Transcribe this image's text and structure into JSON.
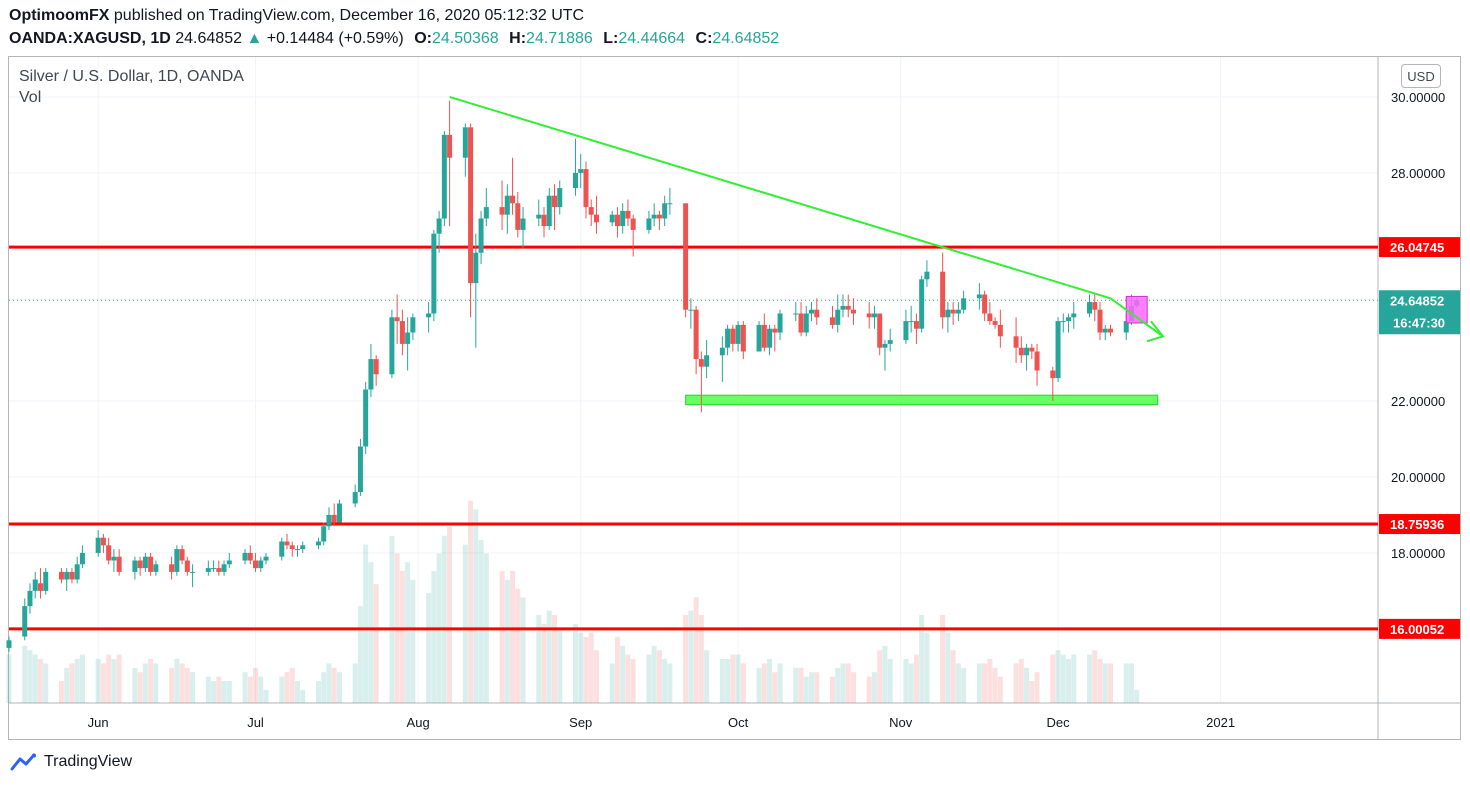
{
  "header": {
    "publisher": "OptimoomFX",
    "published_text": "published on TradingView.com, December 16, 2020 05:12:32 UTC",
    "symbol": "OANDA:XAGUSD, 1D",
    "last": "24.64852",
    "change": "+0.14484 (+0.59%)",
    "o_label": "O:",
    "o": "24.50368",
    "h_label": "H:",
    "h": "24.71886",
    "l_label": "L:",
    "l": "24.44664",
    "c_label": "C:",
    "c": "24.64852"
  },
  "legend": {
    "title": "Silver / U.S. Dollar, 1D, OANDA",
    "vol": "Vol"
  },
  "currency_button": "USD",
  "brand": "TradingView",
  "colors": {
    "up": "#26a69a",
    "down": "#ef5350",
    "level": "#ff0000",
    "trend": "#33ee33",
    "support_zone": "#66ff66",
    "box": "#ff66ff"
  },
  "chart_data": {
    "type": "candlestick",
    "y_ticks": [
      "16.00000",
      "18.00000",
      "20.00000",
      "22.00000",
      "28.00000",
      "30.00000"
    ],
    "x_ticks": [
      {
        "label": "Jun",
        "date": "2020-06-01"
      },
      {
        "label": "Jul",
        "date": "2020-07-01"
      },
      {
        "label": "Aug",
        "date": "2020-08-01"
      },
      {
        "label": "Sep",
        "date": "2020-09-01"
      },
      {
        "label": "Oct",
        "date": "2020-10-01"
      },
      {
        "label": "Nov",
        "date": "2020-11-01"
      },
      {
        "label": "Dec",
        "date": "2020-12-01"
      },
      {
        "label": "2021",
        "date": "2021-01-01"
      }
    ],
    "xlim": [
      "2020-05-15",
      "2021-01-31"
    ],
    "ylim": [
      14.05,
      31.05
    ],
    "horizontal_levels": [
      {
        "value": 26.04745,
        "label": "26.04745"
      },
      {
        "value": 18.75936,
        "label": "18.75936"
      },
      {
        "value": 16.00052,
        "label": "16.00052"
      }
    ],
    "last_price": {
      "value": 24.64852,
      "label": "24.64852",
      "countdown": "16:47:30"
    },
    "trendline": {
      "from": [
        "2020-08-07",
        30.0
      ],
      "to": [
        "2020-12-11",
        24.7
      ],
      "extend_to": [
        "2020-12-21",
        23.7
      ]
    },
    "support_zone": {
      "from": "2020-09-21",
      "to": "2020-12-20",
      "low": 21.9,
      "high": 22.15
    },
    "marker_box": {
      "from": "2020-12-14",
      "to": "2020-12-18",
      "low": 24.05,
      "high": 24.75
    },
    "candles": [
      [
        "2020-05-15",
        15.5,
        15.8,
        15.4,
        15.7,
        1.1
      ],
      [
        "2020-05-18",
        15.8,
        16.8,
        15.7,
        16.6,
        1.3
      ],
      [
        "2020-05-19",
        16.6,
        17.2,
        16.4,
        17.0,
        1.2
      ],
      [
        "2020-05-20",
        17.0,
        17.5,
        16.8,
        17.3,
        1.1
      ],
      [
        "2020-05-21",
        17.2,
        17.6,
        16.8,
        17.0,
        1.0
      ],
      [
        "2020-05-22",
        17.0,
        17.6,
        16.9,
        17.5,
        0.9
      ],
      [
        "2020-05-25",
        17.5,
        17.6,
        17.2,
        17.3,
        0.5
      ],
      [
        "2020-05-26",
        17.3,
        17.6,
        17.0,
        17.5,
        0.8
      ],
      [
        "2020-05-27",
        17.5,
        17.6,
        17.2,
        17.3,
        0.9
      ],
      [
        "2020-05-28",
        17.3,
        17.9,
        17.2,
        17.7,
        1.0
      ],
      [
        "2020-05-29",
        17.7,
        18.2,
        17.6,
        18.0,
        1.1
      ],
      [
        "2020-06-01",
        18.0,
        18.6,
        17.9,
        18.4,
        1.0
      ],
      [
        "2020-06-02",
        18.4,
        18.5,
        18.0,
        18.2,
        0.9
      ],
      [
        "2020-06-03",
        18.2,
        18.4,
        17.7,
        17.8,
        1.1
      ],
      [
        "2020-06-04",
        17.8,
        18.1,
        17.5,
        17.9,
        1.0
      ],
      [
        "2020-06-05",
        17.9,
        18.1,
        17.4,
        17.5,
        1.1
      ],
      [
        "2020-06-08",
        17.5,
        17.9,
        17.3,
        17.8,
        0.8
      ],
      [
        "2020-06-09",
        17.8,
        17.9,
        17.4,
        17.6,
        0.7
      ],
      [
        "2020-06-10",
        17.6,
        18.0,
        17.5,
        17.9,
        0.9
      ],
      [
        "2020-06-11",
        17.9,
        18.0,
        17.4,
        17.5,
        1.0
      ],
      [
        "2020-06-12",
        17.5,
        17.8,
        17.4,
        17.7,
        0.9
      ],
      [
        "2020-06-15",
        17.7,
        17.9,
        17.3,
        17.5,
        0.8
      ],
      [
        "2020-06-16",
        17.5,
        18.2,
        17.4,
        18.1,
        1.0
      ],
      [
        "2020-06-17",
        18.1,
        18.2,
        17.7,
        17.8,
        0.9
      ],
      [
        "2020-06-18",
        17.8,
        17.9,
        17.4,
        17.5,
        0.8
      ],
      [
        "2020-06-19",
        17.5,
        17.7,
        17.1,
        17.5,
        0.7
      ],
      [
        "2020-06-22",
        17.5,
        17.8,
        17.4,
        17.6,
        0.6
      ],
      [
        "2020-06-23",
        17.6,
        17.8,
        17.5,
        17.6,
        0.5
      ],
      [
        "2020-06-24",
        17.6,
        17.8,
        17.4,
        17.5,
        0.6
      ],
      [
        "2020-06-25",
        17.5,
        17.8,
        17.4,
        17.7,
        0.5
      ],
      [
        "2020-06-26",
        17.7,
        18.0,
        17.6,
        17.8,
        0.5
      ],
      [
        "2020-06-29",
        17.8,
        18.1,
        17.7,
        18.0,
        0.7
      ],
      [
        "2020-06-30",
        18.0,
        18.2,
        17.7,
        17.8,
        0.6
      ],
      [
        "2020-07-01",
        17.8,
        18.0,
        17.5,
        17.6,
        0.8
      ],
      [
        "2020-07-02",
        17.6,
        17.9,
        17.5,
        17.8,
        0.6
      ],
      [
        "2020-07-03",
        17.8,
        18.0,
        17.7,
        17.9,
        0.3
      ],
      [
        "2020-07-06",
        17.9,
        18.4,
        17.8,
        18.3,
        0.6
      ],
      [
        "2020-07-07",
        18.3,
        18.5,
        18.1,
        18.2,
        0.7
      ],
      [
        "2020-07-08",
        18.2,
        18.3,
        17.9,
        18.1,
        0.8
      ],
      [
        "2020-07-09",
        18.1,
        18.2,
        17.9,
        18.1,
        0.5
      ],
      [
        "2020-07-10",
        18.1,
        18.3,
        18.0,
        18.2,
        0.3
      ],
      [
        "2020-07-13",
        18.2,
        18.4,
        18.1,
        18.3,
        0.5
      ],
      [
        "2020-07-14",
        18.3,
        18.8,
        18.2,
        18.7,
        0.7
      ],
      [
        "2020-07-15",
        18.7,
        19.2,
        18.6,
        19.0,
        0.9
      ],
      [
        "2020-07-16",
        19.0,
        19.3,
        18.7,
        18.8,
        0.8
      ],
      [
        "2020-07-17",
        18.8,
        19.4,
        18.8,
        19.3,
        0.7
      ],
      [
        "2020-07-20",
        19.3,
        19.8,
        19.2,
        19.6,
        0.9
      ],
      [
        "2020-07-21",
        19.6,
        21.0,
        19.5,
        20.8,
        2.2
      ],
      [
        "2020-07-22",
        20.8,
        22.5,
        20.6,
        22.3,
        3.6
      ],
      [
        "2020-07-23",
        22.3,
        23.5,
        22.1,
        23.1,
        3.2
      ],
      [
        "2020-07-24",
        23.1,
        23.2,
        22.4,
        22.7,
        2.7
      ],
      [
        "2020-07-27",
        22.7,
        24.4,
        22.6,
        24.2,
        3.8
      ],
      [
        "2020-07-28",
        24.2,
        24.8,
        23.5,
        24.1,
        3.4
      ],
      [
        "2020-07-29",
        24.1,
        24.4,
        23.2,
        23.5,
        3.0
      ],
      [
        "2020-07-30",
        23.5,
        24.2,
        22.8,
        23.8,
        3.2
      ],
      [
        "2020-07-31",
        23.8,
        24.3,
        23.6,
        24.2,
        2.8
      ],
      [
        "2020-08-03",
        24.2,
        24.6,
        23.8,
        24.3,
        2.5
      ],
      [
        "2020-08-04",
        24.3,
        26.5,
        24.1,
        26.4,
        3.0
      ],
      [
        "2020-08-05",
        26.4,
        27.0,
        25.9,
        26.8,
        3.4
      ],
      [
        "2020-08-06",
        26.8,
        29.1,
        26.6,
        29.0,
        3.8
      ],
      [
        "2020-08-07",
        29.0,
        29.9,
        26.6,
        28.4,
        4.0
      ],
      [
        "2020-08-10",
        28.4,
        29.3,
        27.9,
        29.2,
        3.6
      ],
      [
        "2020-08-11",
        29.2,
        29.3,
        24.2,
        25.1,
        4.6
      ],
      [
        "2020-08-12",
        25.1,
        26.4,
        23.4,
        25.9,
        4.4
      ],
      [
        "2020-08-13",
        25.9,
        27.0,
        25.6,
        26.8,
        3.7
      ],
      [
        "2020-08-14",
        26.8,
        27.6,
        26.6,
        27.1,
        3.4
      ],
      [
        "2020-08-17",
        27.1,
        27.8,
        26.5,
        26.9,
        3.0
      ],
      [
        "2020-08-18",
        26.9,
        27.7,
        26.4,
        27.4,
        2.8
      ],
      [
        "2020-08-19",
        27.4,
        28.4,
        26.9,
        27.2,
        3.0
      ],
      [
        "2020-08-20",
        27.2,
        27.5,
        26.3,
        26.5,
        2.6
      ],
      [
        "2020-08-21",
        26.5,
        27.1,
        26.0,
        26.8,
        2.4
      ],
      [
        "2020-08-24",
        26.8,
        27.3,
        26.6,
        26.9,
        2.0
      ],
      [
        "2020-08-25",
        26.9,
        27.1,
        26.3,
        26.6,
        1.8
      ],
      [
        "2020-08-26",
        26.6,
        27.6,
        26.5,
        27.4,
        2.1
      ],
      [
        "2020-08-27",
        27.4,
        27.7,
        26.5,
        27.1,
        2.0
      ],
      [
        "2020-08-28",
        27.1,
        27.8,
        26.9,
        27.6,
        1.7
      ],
      [
        "2020-08-31",
        27.6,
        28.9,
        27.4,
        28.0,
        1.8
      ],
      [
        "2020-09-01",
        28.0,
        28.5,
        27.6,
        28.1,
        1.6
      ],
      [
        "2020-09-02",
        28.1,
        28.3,
        26.8,
        27.1,
        1.5
      ],
      [
        "2020-09-03",
        27.1,
        27.3,
        26.6,
        26.9,
        1.6
      ],
      [
        "2020-09-04",
        26.9,
        27.4,
        26.4,
        26.7,
        1.2
      ],
      [
        "2020-09-07",
        26.7,
        27.0,
        26.6,
        26.9,
        0.9
      ],
      [
        "2020-09-08",
        26.9,
        27.1,
        26.3,
        26.6,
        1.5
      ],
      [
        "2020-09-09",
        26.6,
        27.2,
        26.4,
        27.0,
        1.3
      ],
      [
        "2020-09-10",
        27.0,
        27.3,
        26.6,
        26.8,
        1.1
      ],
      [
        "2020-09-11",
        26.8,
        26.9,
        25.8,
        26.5,
        1.0
      ],
      [
        "2020-09-14",
        26.5,
        27.0,
        26.4,
        26.8,
        1.1
      ],
      [
        "2020-09-15",
        26.8,
        27.2,
        26.6,
        26.9,
        1.3
      ],
      [
        "2020-09-16",
        26.9,
        27.0,
        26.5,
        26.8,
        1.2
      ],
      [
        "2020-09-17",
        26.8,
        27.4,
        26.6,
        27.2,
        1.0
      ],
      [
        "2020-09-18",
        27.2,
        27.6,
        26.9,
        27.2,
        0.9
      ],
      [
        "2020-09-21",
        27.2,
        27.2,
        24.2,
        24.4,
        2.0
      ],
      [
        "2020-09-22",
        24.4,
        24.7,
        23.9,
        24.4,
        2.1
      ],
      [
        "2020-09-23",
        24.4,
        24.5,
        22.7,
        23.1,
        2.4
      ],
      [
        "2020-09-24",
        23.1,
        23.3,
        21.7,
        22.9,
        2.0
      ],
      [
        "2020-09-25",
        22.9,
        23.6,
        22.6,
        23.2,
        1.2
      ],
      [
        "2020-09-28",
        23.2,
        23.7,
        22.5,
        23.4,
        1.0
      ],
      [
        "2020-09-29",
        23.4,
        24.0,
        23.2,
        23.9,
        1.0
      ],
      [
        "2020-09-30",
        23.9,
        24.0,
        23.3,
        23.5,
        1.1
      ],
      [
        "2020-10-01",
        23.5,
        24.1,
        23.3,
        24.0,
        1.1
      ],
      [
        "2020-10-02",
        24.0,
        24.1,
        23.1,
        23.3,
        0.9
      ],
      [
        "2020-10-05",
        23.3,
        24.1,
        23.3,
        24.0,
        0.8
      ],
      [
        "2020-10-06",
        24.0,
        24.3,
        23.3,
        23.4,
        0.9
      ],
      [
        "2020-10-07",
        23.4,
        24.0,
        23.2,
        23.9,
        1.0
      ],
      [
        "2020-10-08",
        23.9,
        24.0,
        23.3,
        23.8,
        0.7
      ],
      [
        "2020-10-09",
        23.8,
        24.4,
        23.6,
        24.3,
        0.9
      ],
      [
        "2020-10-12",
        24.3,
        24.6,
        24.1,
        24.3,
        0.8
      ],
      [
        "2020-10-13",
        24.3,
        24.6,
        23.7,
        23.8,
        0.8
      ],
      [
        "2020-10-14",
        23.8,
        24.5,
        23.7,
        24.3,
        0.6
      ],
      [
        "2020-10-15",
        24.3,
        24.6,
        24.1,
        24.4,
        0.7
      ],
      [
        "2020-10-16",
        24.4,
        24.7,
        24.0,
        24.2,
        0.7
      ],
      [
        "2020-10-19",
        24.2,
        24.5,
        23.9,
        24.0,
        0.6
      ],
      [
        "2020-10-20",
        24.0,
        24.8,
        23.8,
        24.4,
        0.8
      ],
      [
        "2020-10-21",
        24.4,
        24.8,
        24.2,
        24.5,
        0.9
      ],
      [
        "2020-10-22",
        24.5,
        24.8,
        24.2,
        24.4,
        0.9
      ],
      [
        "2020-10-23",
        24.4,
        24.7,
        24.0,
        24.3,
        0.7
      ],
      [
        "2020-10-26",
        24.3,
        24.6,
        23.9,
        24.2,
        0.6
      ],
      [
        "2020-10-27",
        24.2,
        24.5,
        23.9,
        24.3,
        0.7
      ],
      [
        "2020-10-28",
        24.3,
        24.3,
        23.2,
        23.4,
        1.2
      ],
      [
        "2020-10-29",
        23.4,
        23.6,
        22.8,
        23.5,
        1.3
      ],
      [
        "2020-10-30",
        23.5,
        23.9,
        23.3,
        23.6,
        1.0
      ],
      [
        "2020-11-02",
        23.6,
        24.4,
        23.5,
        24.1,
        1.0
      ],
      [
        "2020-11-03",
        24.1,
        24.5,
        23.8,
        24.1,
        0.9
      ],
      [
        "2020-11-04",
        24.1,
        24.3,
        23.5,
        23.9,
        1.1
      ],
      [
        "2020-11-05",
        23.9,
        25.3,
        23.8,
        25.2,
        2.0
      ],
      [
        "2020-11-06",
        25.2,
        25.7,
        25.0,
        25.4,
        1.6
      ],
      [
        "2020-11-09",
        25.4,
        25.9,
        23.9,
        24.2,
        2.0
      ],
      [
        "2020-11-10",
        24.2,
        24.6,
        23.8,
        24.4,
        1.6
      ],
      [
        "2020-11-11",
        24.4,
        24.6,
        24.0,
        24.3,
        1.2
      ],
      [
        "2020-11-12",
        24.3,
        24.6,
        24.1,
        24.4,
        0.9
      ],
      [
        "2020-11-13",
        24.4,
        24.9,
        24.3,
        24.7,
        0.8
      ],
      [
        "2020-11-16",
        24.7,
        25.1,
        24.4,
        24.8,
        0.9
      ],
      [
        "2020-11-17",
        24.8,
        24.9,
        24.1,
        24.3,
        0.9
      ],
      [
        "2020-11-18",
        24.3,
        24.6,
        24.0,
        24.1,
        1.0
      ],
      [
        "2020-11-19",
        24.1,
        24.2,
        23.9,
        24.0,
        0.8
      ],
      [
        "2020-11-20",
        24.0,
        24.4,
        23.4,
        23.7,
        0.6
      ],
      [
        "2020-11-23",
        23.7,
        24.2,
        23.0,
        23.4,
        0.9
      ],
      [
        "2020-11-24",
        23.4,
        23.7,
        23.0,
        23.2,
        1.0
      ],
      [
        "2020-11-25",
        23.2,
        23.5,
        22.8,
        23.4,
        0.8
      ],
      [
        "2020-11-26",
        23.4,
        23.5,
        23.1,
        23.3,
        0.5
      ],
      [
        "2020-11-27",
        23.3,
        23.5,
        22.4,
        22.8,
        0.7
      ],
      [
        "2020-11-30",
        22.8,
        22.9,
        22.0,
        22.6,
        1.1
      ],
      [
        "2020-12-01",
        22.6,
        24.2,
        22.5,
        24.1,
        1.2
      ],
      [
        "2020-12-02",
        24.1,
        24.3,
        23.8,
        24.1,
        1.1
      ],
      [
        "2020-12-03",
        24.1,
        24.3,
        23.8,
        24.2,
        1.0
      ],
      [
        "2020-12-04",
        24.2,
        24.6,
        23.9,
        24.3,
        1.1
      ],
      [
        "2020-12-07",
        24.3,
        24.8,
        24.2,
        24.6,
        1.1
      ],
      [
        "2020-12-08",
        24.6,
        24.8,
        24.1,
        24.4,
        1.2
      ],
      [
        "2020-12-09",
        24.4,
        24.6,
        23.6,
        23.8,
        1.0
      ],
      [
        "2020-12-10",
        23.8,
        24.0,
        23.6,
        23.9,
        0.9
      ],
      [
        "2020-12-11",
        23.9,
        24.0,
        23.7,
        23.8,
        0.9
      ],
      [
        "2020-12-14",
        23.8,
        24.3,
        23.6,
        24.1,
        0.9
      ],
      [
        "2020-12-15",
        24.1,
        24.8,
        24.0,
        24.5,
        0.9
      ],
      [
        "2020-12-16",
        24.50368,
        24.71886,
        24.44664,
        24.64852,
        0.3
      ]
    ]
  }
}
